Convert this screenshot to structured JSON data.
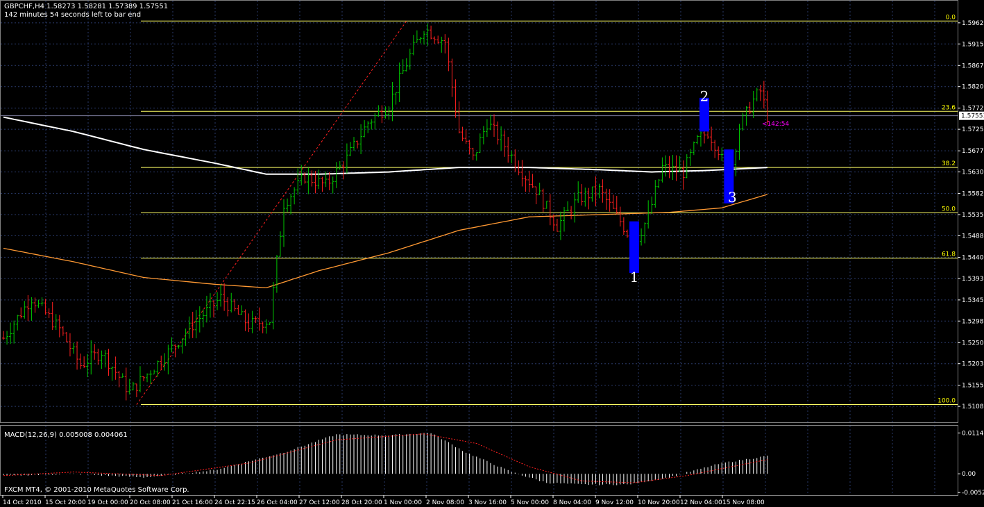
{
  "header": {
    "symbol_line": "GBPCHF,H4  1.58273 1.58281 1.57389 1.57551",
    "timer_line": "142 minutes 54 seconds left to bar end"
  },
  "colors": {
    "background": "#000000",
    "grid": "#2a3a6a",
    "bull": "#00c800",
    "bear": "#ff2020",
    "fib": "#ffff66",
    "ma_slow": "#ffffff",
    "ma_fast": "#ff9933",
    "trend": "#ff2020",
    "highlight": "#0000ff",
    "timer": "#ff00ff",
    "macd_hist": "#ffffff",
    "macd_signal": "#ff2020"
  },
  "price_axis": {
    "ticks": [
      "1.59620",
      "1.59150",
      "1.58670",
      "1.58200",
      "1.57720",
      "1.57250",
      "1.56770",
      "1.56300",
      "1.55820",
      "1.55350",
      "1.54880",
      "1.54400",
      "1.53930",
      "1.53450",
      "1.52980",
      "1.52500",
      "1.52030",
      "1.51550",
      "1.51080"
    ],
    "current_price": "1.57551"
  },
  "time_axis": {
    "labels": [
      "14 Oct 2010",
      "15 Oct 20:00",
      "19 Oct 00:00",
      "20 Oct 08:00",
      "21 Oct 16:00",
      "24 Oct 22:15",
      "26 Oct 04:00",
      "27 Oct 12:00",
      "28 Oct 20:00",
      "1 Nov 00:00",
      "2 Nov 08:00",
      "3 Nov 16:00",
      "5 Nov 00:00",
      "8 Nov 04:00",
      "9 Nov 12:00",
      "10 Nov 20:00",
      "12 Nov 04:00",
      "15 Nov 08:00"
    ]
  },
  "fib_levels": [
    {
      "label": "0.0",
      "price": 1.5966
    },
    {
      "label": "23.6",
      "price": 1.5765
    },
    {
      "label": "38.2",
      "price": 1.564
    },
    {
      "label": "50.0",
      "price": 1.5539
    },
    {
      "label": "61.8",
      "price": 1.5438
    },
    {
      "label": "100.0",
      "price": 1.5112
    }
  ],
  "wave_labels": [
    {
      "text": "1",
      "price": 1.5385,
      "bar": 180
    },
    {
      "text": "2",
      "price": 1.5788,
      "bar": 200
    },
    {
      "text": "3",
      "price": 1.5563,
      "bar": 208
    }
  ],
  "timer_label": "<142:54",
  "macd": {
    "title": "MACD(12,26,9) 0.005008 0.004061",
    "ticks": [
      "0.01145",
      "0.00",
      "-0.00525"
    ]
  },
  "footer": "FXCM MT4, © 2001-2010 MetaQuotes Software Corp.",
  "chart_data": {
    "type": "candlestick-bars",
    "title": "GBPCHF,H4",
    "ylim": [
      1.5085,
      1.5985
    ],
    "macd_ylim": [
      -0.0058,
      0.0125
    ],
    "anchors": [
      {
        "bar": 0,
        "price": 1.526
      },
      {
        "bar": 8,
        "price": 1.535
      },
      {
        "bar": 16,
        "price": 1.528
      },
      {
        "bar": 22,
        "price": 1.52
      },
      {
        "bar": 28,
        "price": 1.523
      },
      {
        "bar": 36,
        "price": 1.514
      },
      {
        "bar": 46,
        "price": 1.522
      },
      {
        "bar": 54,
        "price": 1.529
      },
      {
        "bar": 62,
        "price": 1.535
      },
      {
        "bar": 70,
        "price": 1.529
      },
      {
        "bar": 76,
        "price": 1.53
      },
      {
        "bar": 80,
        "price": 1.556
      },
      {
        "bar": 86,
        "price": 1.562
      },
      {
        "bar": 92,
        "price": 1.56
      },
      {
        "bar": 98,
        "price": 1.566
      },
      {
        "bar": 104,
        "price": 1.574
      },
      {
        "bar": 110,
        "price": 1.578
      },
      {
        "bar": 116,
        "price": 1.589
      },
      {
        "bar": 120,
        "price": 1.595
      },
      {
        "bar": 126,
        "price": 1.592
      },
      {
        "bar": 130,
        "price": 1.572
      },
      {
        "bar": 134,
        "price": 1.566
      },
      {
        "bar": 138,
        "price": 1.574
      },
      {
        "bar": 142,
        "price": 1.57
      },
      {
        "bar": 148,
        "price": 1.563
      },
      {
        "bar": 152,
        "price": 1.559
      },
      {
        "bar": 158,
        "price": 1.551
      },
      {
        "bar": 164,
        "price": 1.557
      },
      {
        "bar": 170,
        "price": 1.559
      },
      {
        "bar": 176,
        "price": 1.552
      },
      {
        "bar": 180,
        "price": 1.547
      },
      {
        "bar": 184,
        "price": 1.553
      },
      {
        "bar": 188,
        "price": 1.564
      },
      {
        "bar": 194,
        "price": 1.563
      },
      {
        "bar": 198,
        "price": 1.57
      },
      {
        "bar": 201,
        "price": 1.572
      },
      {
        "bar": 204,
        "price": 1.568
      },
      {
        "bar": 207,
        "price": 1.561
      },
      {
        "bar": 210,
        "price": 1.573
      },
      {
        "bar": 214,
        "price": 1.579
      },
      {
        "bar": 216,
        "price": 1.581
      },
      {
        "bar": 218,
        "price": 1.5755
      }
    ],
    "ma_slow": [
      {
        "bar": 0,
        "price": 1.5752
      },
      {
        "bar": 20,
        "price": 1.572
      },
      {
        "bar": 40,
        "price": 1.568
      },
      {
        "bar": 60,
        "price": 1.565
      },
      {
        "bar": 75,
        "price": 1.5625
      },
      {
        "bar": 90,
        "price": 1.5625
      },
      {
        "bar": 110,
        "price": 1.563
      },
      {
        "bar": 130,
        "price": 1.564
      },
      {
        "bar": 150,
        "price": 1.564
      },
      {
        "bar": 170,
        "price": 1.5635
      },
      {
        "bar": 185,
        "price": 1.563
      },
      {
        "bar": 200,
        "price": 1.5633
      },
      {
        "bar": 218,
        "price": 1.564
      }
    ],
    "ma_fast": [
      {
        "bar": 0,
        "price": 1.546
      },
      {
        "bar": 20,
        "price": 1.543
      },
      {
        "bar": 40,
        "price": 1.5395
      },
      {
        "bar": 60,
        "price": 1.538
      },
      {
        "bar": 75,
        "price": 1.5372
      },
      {
        "bar": 90,
        "price": 1.541
      },
      {
        "bar": 110,
        "price": 1.545
      },
      {
        "bar": 130,
        "price": 1.55
      },
      {
        "bar": 150,
        "price": 1.553
      },
      {
        "bar": 170,
        "price": 1.5535
      },
      {
        "bar": 190,
        "price": 1.554
      },
      {
        "bar": 205,
        "price": 1.555
      },
      {
        "bar": 218,
        "price": 1.558
      }
    ],
    "trend_line": [
      {
        "bar": 38,
        "price": 1.5112
      },
      {
        "bar": 115,
        "price": 1.5966
      }
    ],
    "highlight_boxes": [
      {
        "bar": 180,
        "price_top": 1.552,
        "price_bottom": 1.5405
      },
      {
        "bar": 200,
        "price_top": 1.5795,
        "price_bottom": 1.572
      },
      {
        "bar": 207,
        "price_top": 1.568,
        "price_bottom": 1.556
      }
    ],
    "macd_anchors": [
      {
        "bar": 0,
        "value": -0.0005
      },
      {
        "bar": 20,
        "value": 0.0
      },
      {
        "bar": 40,
        "value": -0.001
      },
      {
        "bar": 60,
        "value": 0.001
      },
      {
        "bar": 80,
        "value": 0.006
      },
      {
        "bar": 95,
        "value": 0.011
      },
      {
        "bar": 110,
        "value": 0.0108
      },
      {
        "bar": 122,
        "value": 0.0115
      },
      {
        "bar": 132,
        "value": 0.006
      },
      {
        "bar": 145,
        "value": 0.0005
      },
      {
        "bar": 155,
        "value": -0.0025
      },
      {
        "bar": 165,
        "value": -0.003
      },
      {
        "bar": 178,
        "value": -0.003
      },
      {
        "bar": 190,
        "value": -0.001
      },
      {
        "bar": 205,
        "value": 0.003
      },
      {
        "bar": 218,
        "value": 0.005
      }
    ],
    "macd_signal": [
      {
        "bar": 0,
        "value": -0.0005
      },
      {
        "bar": 20,
        "value": 0.0005
      },
      {
        "bar": 45,
        "value": -0.0005
      },
      {
        "bar": 70,
        "value": 0.003
      },
      {
        "bar": 95,
        "value": 0.0095
      },
      {
        "bar": 120,
        "value": 0.0112
      },
      {
        "bar": 135,
        "value": 0.0085
      },
      {
        "bar": 150,
        "value": 0.002
      },
      {
        "bar": 165,
        "value": -0.002
      },
      {
        "bar": 180,
        "value": -0.0025
      },
      {
        "bar": 195,
        "value": -0.0005
      },
      {
        "bar": 218,
        "value": 0.004
      }
    ]
  }
}
